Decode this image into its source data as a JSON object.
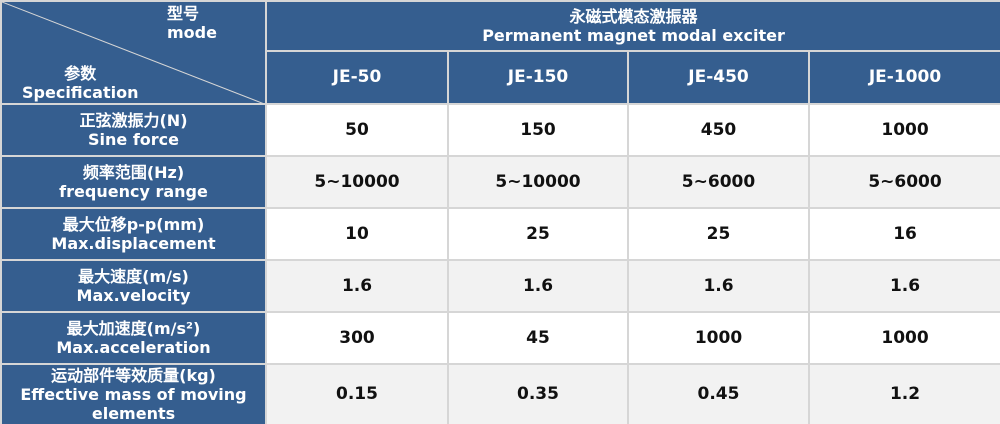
{
  "corner": {
    "model_cn": "型号",
    "model_en": "mode",
    "spec_cn": "参数",
    "spec_en": "Specification"
  },
  "product": {
    "title_cn": "永磁式模态激振器",
    "title_en": "Permanent magnet modal exciter"
  },
  "models": [
    "JE-50",
    "JE-150",
    "JE-450",
    "JE-1000"
  ],
  "rows": [
    {
      "cn": "正弦激振力(N)",
      "en": "Sine force",
      "values": [
        "50",
        "150",
        "450",
        "1000"
      ]
    },
    {
      "cn": "频率范围(Hz)",
      "en": "frequency range",
      "values": [
        "5~10000",
        "5~10000",
        "5~6000",
        "5~6000"
      ]
    },
    {
      "cn": "最大位移p-p(mm)",
      "en": "Max.displacement",
      "values": [
        "10",
        "25",
        "25",
        "16"
      ]
    },
    {
      "cn": "最大速度(m/s)",
      "en": "Max.velocity",
      "values": [
        "1.6",
        "1.6",
        "1.6",
        "1.6"
      ]
    },
    {
      "cn": "最大加速度(m/s²)",
      "en": "Max.acceleration",
      "values": [
        "300",
        "45",
        "1000",
        "1000"
      ]
    },
    {
      "cn": "运动部件等效质量(kg)",
      "en": "Effective mass of moving elements",
      "values": [
        "0.15",
        "0.35",
        "0.45",
        "1.2"
      ]
    }
  ],
  "colors": {
    "header": "#355e8f",
    "stripe": "#f2f2f2",
    "border": "#d6d6d6"
  }
}
